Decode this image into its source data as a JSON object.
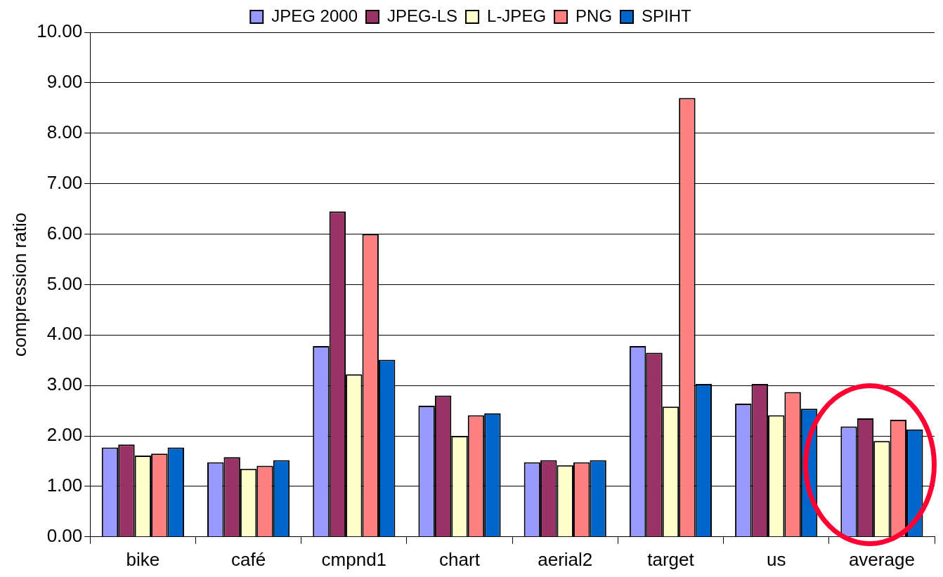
{
  "chart_data": {
    "type": "bar",
    "ylabel": "compression ratio",
    "categories": [
      "bike",
      "café",
      "cmpnd1",
      "chart",
      "aerial2",
      "target",
      "us",
      "average"
    ],
    "series": [
      {
        "name": "JPEG 2000",
        "color": "#9999ff",
        "values": [
          1.77,
          1.48,
          3.78,
          2.6,
          1.48,
          3.78,
          2.64,
          2.19
        ]
      },
      {
        "name": "JPEG-LS",
        "color": "#993366",
        "values": [
          1.83,
          1.58,
          6.45,
          2.8,
          1.52,
          3.65,
          3.03,
          2.35
        ]
      },
      {
        "name": "L-JPEG",
        "color": "#ffffcc",
        "values": [
          1.61,
          1.35,
          3.22,
          2.0,
          1.42,
          2.58,
          2.41,
          1.9
        ]
      },
      {
        "name": "PNG",
        "color": "#ff8080",
        "values": [
          1.65,
          1.41,
          6.0,
          2.41,
          1.48,
          8.7,
          2.87,
          2.32
        ]
      },
      {
        "name": "SPIHT",
        "color": "#0066cc",
        "values": [
          1.77,
          1.52,
          3.51,
          2.45,
          1.52,
          3.03,
          2.54,
          2.13
        ]
      }
    ],
    "ylim": [
      0,
      10
    ],
    "yticks": [
      {
        "value": 0,
        "label": "0.00"
      },
      {
        "value": 1,
        "label": "1.00"
      },
      {
        "value": 2,
        "label": "2.00"
      },
      {
        "value": 3,
        "label": "3.00"
      },
      {
        "value": 4,
        "label": "4.00"
      },
      {
        "value": 5,
        "label": "5.00"
      },
      {
        "value": 6,
        "label": "6.00"
      },
      {
        "value": 7,
        "label": "7.00"
      },
      {
        "value": 8,
        "label": "8.00"
      },
      {
        "value": 9,
        "label": "9.00"
      },
      {
        "value": 10,
        "label": "10.00"
      }
    ],
    "grid": "y",
    "legend": "top"
  }
}
